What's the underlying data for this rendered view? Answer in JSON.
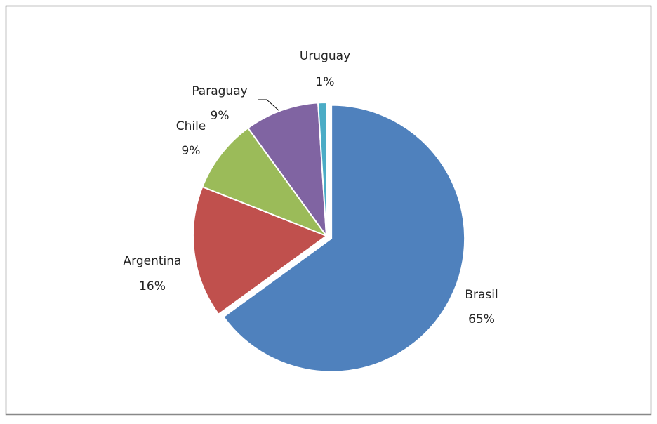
{
  "chart_data": {
    "type": "pie",
    "categories": [
      "Brasil",
      "Argentina",
      "Chile",
      "Paraguay",
      "Uruguay"
    ],
    "values": [
      65,
      16,
      9,
      9,
      1
    ],
    "value_labels": [
      "65%",
      "16%",
      "9%",
      "9%",
      "1%"
    ],
    "colors": [
      "#4f81bd",
      "#c0504d",
      "#9bbb59",
      "#8064a2",
      "#4bacc6"
    ]
  }
}
